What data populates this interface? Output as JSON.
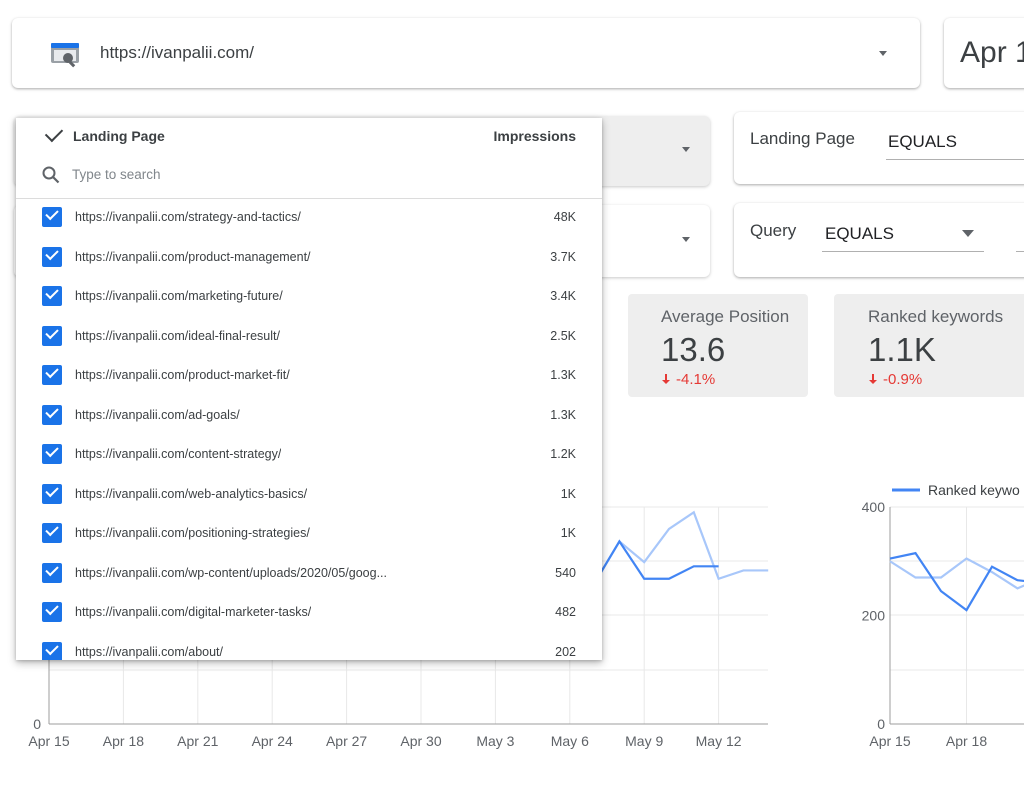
{
  "site_selector": {
    "url": "https://ivanpalii.com/",
    "icon": "search-console-icon"
  },
  "date_range": {
    "label": "Apr 1"
  },
  "filters": [
    {
      "field": "Landing Page",
      "operator": "EQUALS"
    },
    {
      "field": "Query",
      "operator": "EQUALS"
    }
  ],
  "kpis": [
    {
      "label": "Average Position",
      "value": "13.6",
      "change": "-4.1%"
    },
    {
      "label": "Ranked keywords",
      "value": "1.1K",
      "change": "-0.9%"
    }
  ],
  "dropdown": {
    "dimension_label": "Landing Page",
    "metric_label": "Impressions",
    "search_placeholder": "Type to search",
    "rows": [
      {
        "url": "https://ivanpalii.com/strategy-and-tactics/",
        "impressions": "48K",
        "checked": true
      },
      {
        "url": "https://ivanpalii.com/product-management/",
        "impressions": "3.7K",
        "checked": true
      },
      {
        "url": "https://ivanpalii.com/marketing-future/",
        "impressions": "3.4K",
        "checked": true
      },
      {
        "url": "https://ivanpalii.com/ideal-final-result/",
        "impressions": "2.5K",
        "checked": true
      },
      {
        "url": "https://ivanpalii.com/product-market-fit/",
        "impressions": "1.3K",
        "checked": true
      },
      {
        "url": "https://ivanpalii.com/ad-goals/",
        "impressions": "1.3K",
        "checked": true
      },
      {
        "url": "https://ivanpalii.com/content-strategy/",
        "impressions": "1.2K",
        "checked": true
      },
      {
        "url": "https://ivanpalii.com/web-analytics-basics/",
        "impressions": "1K",
        "checked": true
      },
      {
        "url": "https://ivanpalii.com/positioning-strategies/",
        "impressions": "1K",
        "checked": true
      },
      {
        "url": "https://ivanpalii.com/wp-content/uploads/2020/05/goog...",
        "impressions": "540",
        "checked": true
      },
      {
        "url": "https://ivanpalii.com/digital-marketer-tasks/",
        "impressions": "482",
        "checked": true
      },
      {
        "url": "https://ivanpalii.com/about/",
        "impressions": "202",
        "checked": true
      }
    ]
  },
  "colors": {
    "accent": "#1a73e8",
    "series_primary": "#4285f4",
    "series_compare": "#a8c7fa",
    "negative": "#e53935"
  },
  "chart_data": [
    {
      "type": "line",
      "title": "",
      "x_ticks": [
        "Apr 15",
        "Apr 18",
        "Apr 21",
        "Apr 24",
        "Apr 27",
        "Apr 30",
        "May 3",
        "May 6",
        "May 9",
        "May 12"
      ],
      "y_ticks": [
        "0"
      ],
      "series": [
        {
          "role": "current",
          "points": [
            [
              22,
              34
            ],
            [
              23,
              44
            ],
            [
              24,
              35
            ],
            [
              25,
              35
            ],
            [
              26,
              38
            ],
            [
              27,
              38
            ]
          ]
        },
        {
          "role": "previous",
          "points": [
            [
              22,
              34
            ],
            [
              23,
              44
            ],
            [
              24,
              39
            ],
            [
              25,
              47
            ],
            [
              26,
              51
            ],
            [
              27,
              35
            ],
            [
              28,
              37
            ],
            [
              29,
              37
            ]
          ]
        }
      ]
    },
    {
      "type": "line",
      "title": "",
      "legend": [
        "Ranked keywo"
      ],
      "x_ticks": [
        "Apr 15",
        "Apr 18",
        "A"
      ],
      "y_ticks": [
        "0",
        "200",
        "400"
      ],
      "ylim": [
        0,
        400
      ],
      "series": [
        {
          "role": "current",
          "points": [
            [
              0,
              305
            ],
            [
              1,
              315
            ],
            [
              2,
              245
            ],
            [
              3,
              210
            ],
            [
              4,
              290
            ],
            [
              5,
              265
            ],
            [
              6,
              260
            ]
          ]
        },
        {
          "role": "previous",
          "points": [
            [
              0,
              300
            ],
            [
              1,
              270
            ],
            [
              2,
              270
            ],
            [
              3,
              305
            ],
            [
              4,
              280
            ],
            [
              5,
              250
            ],
            [
              6,
              270
            ]
          ]
        }
      ]
    }
  ]
}
